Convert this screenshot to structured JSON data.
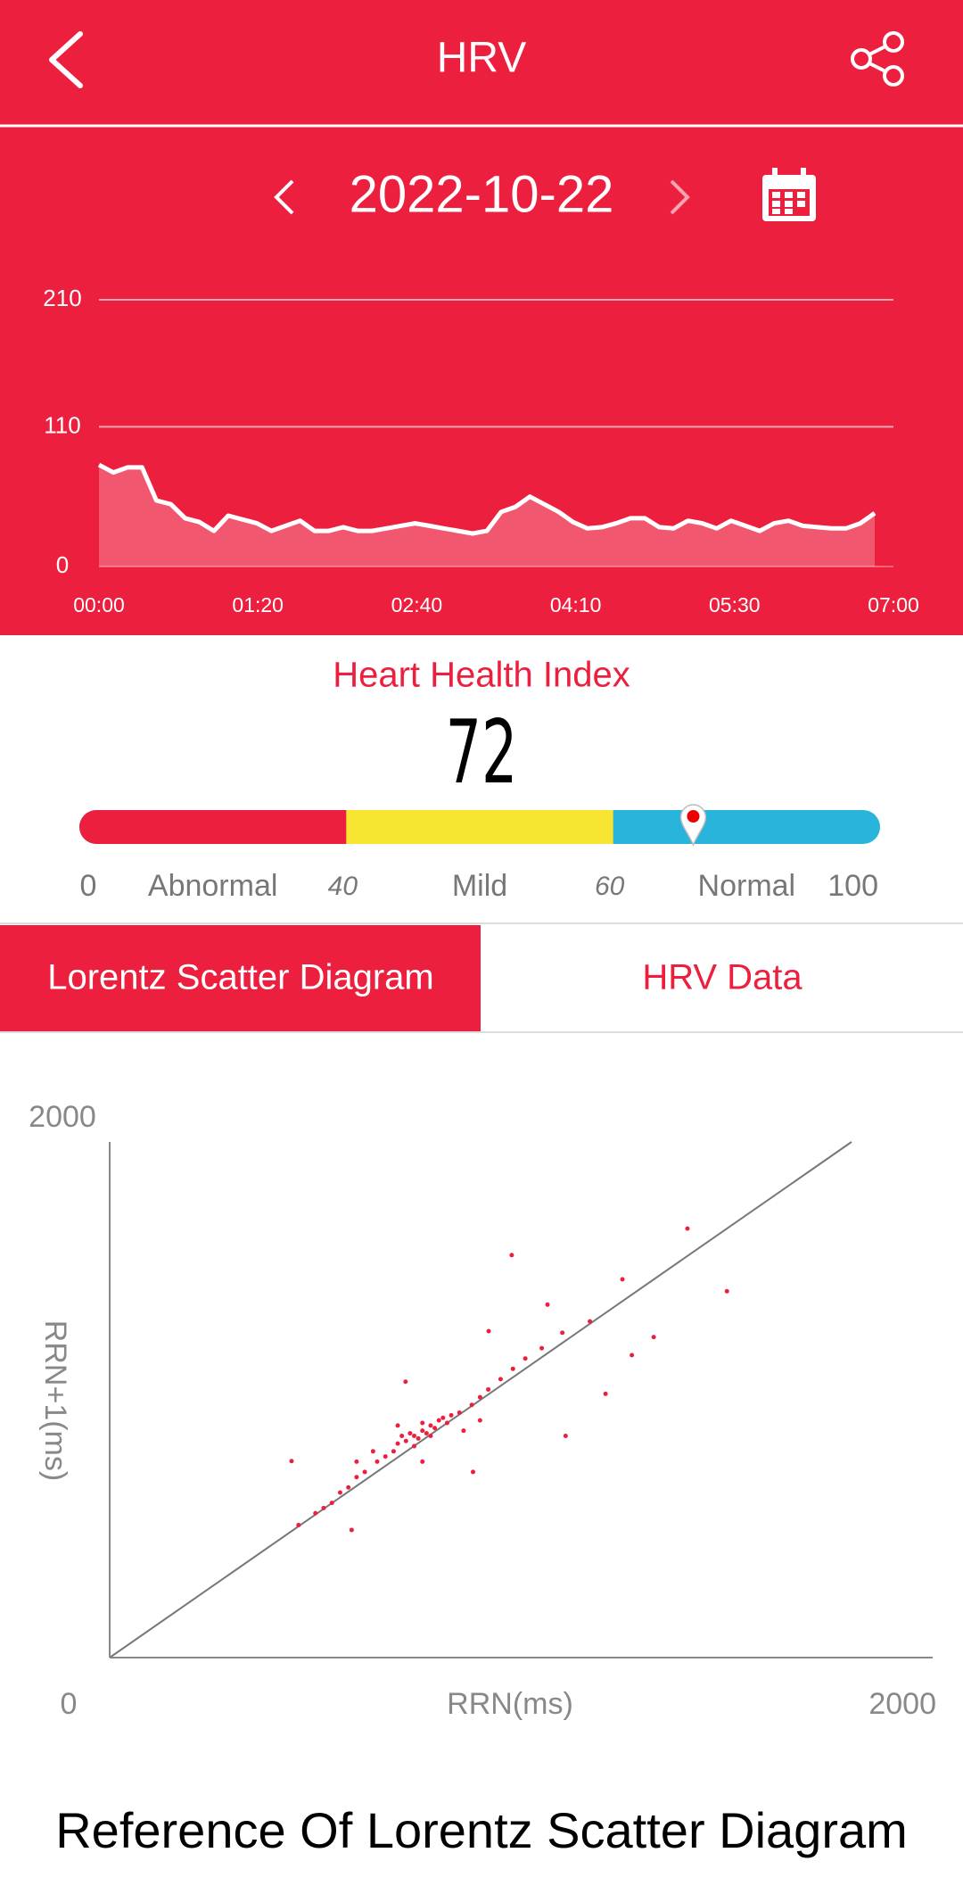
{
  "header": {
    "title": "HRV",
    "date": "2022-10-22"
  },
  "chart_data": [
    {
      "type": "area",
      "values": [
        80,
        74,
        78,
        78,
        52,
        49,
        38,
        35,
        28,
        40,
        37,
        34,
        28,
        32,
        36,
        28,
        28,
        31,
        28,
        28,
        30,
        32,
        34,
        32,
        30,
        28,
        26,
        28,
        43,
        47,
        55,
        49,
        43,
        35,
        30,
        31,
        34,
        38,
        38,
        31,
        30,
        36,
        34,
        30,
        36,
        32,
        28,
        34,
        36,
        32,
        31,
        30,
        30,
        34,
        42
      ],
      "color": "#ffffff",
      "ylim": [
        0,
        210
      ],
      "yticks": [
        0,
        110,
        210
      ],
      "xtick_labels": [
        "00:00",
        "01:20",
        "02:40",
        "04:10",
        "05:30",
        "07:00"
      ],
      "grid": true
    },
    {
      "type": "scatter",
      "x_label": "RRN(ms)",
      "y_label": "RRN+1(ms)",
      "xlim": [
        0,
        2000
      ],
      "ylim": [
        0,
        2000
      ],
      "xticks": [
        0,
        2000
      ],
      "yticks": [
        2000
      ],
      "color": "#ec1f3f",
      "x": [
        760,
        780,
        740,
        800,
        720,
        770,
        790,
        750,
        810,
        730,
        700,
        820,
        760,
        780,
        740,
        690,
        850,
        830,
        710,
        670,
        650,
        620,
        600,
        580,
        560,
        540,
        520,
        500,
        880,
        900,
        920,
        950,
        980,
        1010,
        1050,
        1100,
        640,
        700,
        860,
        900,
        600,
        760,
        977,
        1404,
        1500,
        1322,
        1246,
        1064,
        1205,
        1108,
        442,
        459,
        588,
        921,
        719,
        883,
        1269,
        1167
      ],
      "y": [
        880,
        900,
        860,
        920,
        840,
        870,
        890,
        850,
        930,
        870,
        830,
        910,
        910,
        860,
        820,
        800,
        950,
        940,
        860,
        780,
        760,
        720,
        700,
        660,
        640,
        600,
        580,
        560,
        980,
        1010,
        1040,
        1080,
        1120,
        1160,
        1200,
        1260,
        800,
        900,
        880,
        920,
        760,
        760,
        1561,
        1664,
        1421,
        1243,
        1467,
        1369,
        1023,
        860,
        762,
        514,
        495,
        1266,
        1070,
        720,
        1173,
        1304
      ]
    }
  ],
  "heart_health_index": {
    "title": "Heart Health Index",
    "value": 72,
    "scale": [
      0,
      40,
      60,
      100
    ],
    "levels": [
      "Abnormal",
      "Mild",
      "Normal"
    ],
    "colors": [
      "#ec1f3f",
      "#f7e531",
      "#28b4db"
    ]
  },
  "tabs": [
    "Lorentz Scatter Diagram",
    "HRV Data"
  ],
  "footer": {
    "title": "Reference Of Lorentz Scatter Diagram"
  }
}
